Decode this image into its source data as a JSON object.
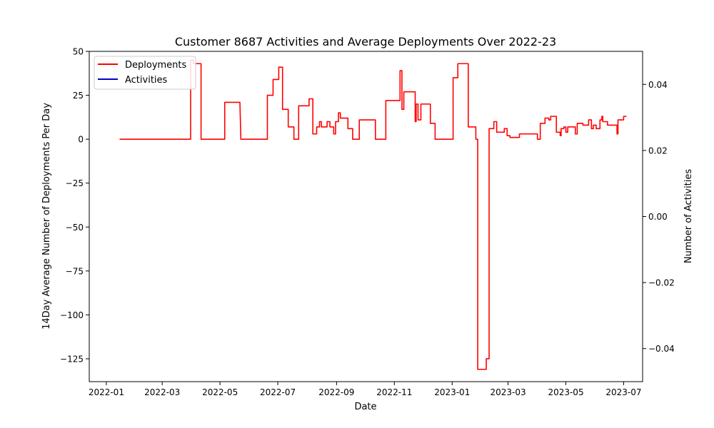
{
  "chart_data": {
    "type": "line",
    "title": "Customer 8687 Activities and Average Deployments Over 2022-23",
    "xlabel": "Date",
    "ylabel_left": "14Day Average Number of Deployments Per Day",
    "ylabel_right": "Number of Activities",
    "x_ticks": [
      "2022-01",
      "2022-03",
      "2022-05",
      "2022-07",
      "2022-09",
      "2022-11",
      "2023-01",
      "2023-03",
      "2023-05",
      "2023-07"
    ],
    "y_ticks_left": [
      "50",
      "25",
      "0",
      "−25",
      "−50",
      "−75",
      "−100",
      "−125"
    ],
    "y_ticks_right": [
      "0.04",
      "0.02",
      "0.00",
      "−0.02",
      "−0.04"
    ],
    "ylim_left": [
      -138,
      50
    ],
    "ylim_right": [
      -0.05,
      0.05
    ],
    "legend": {
      "position": "top-left",
      "entries": [
        "Deployments",
        "Activities"
      ]
    },
    "series": [
      {
        "name": "Deployments",
        "axis": "left",
        "color": "#ff0000",
        "points": [
          [
            "2022-01-15",
            0
          ],
          [
            "2022-03-31",
            0
          ],
          [
            "2022-03-31",
            45
          ],
          [
            "2022-04-03",
            45
          ],
          [
            "2022-04-03",
            43
          ],
          [
            "2022-04-11",
            43
          ],
          [
            "2022-04-11",
            0
          ],
          [
            "2022-05-06",
            0
          ],
          [
            "2022-05-06",
            21
          ],
          [
            "2022-05-22",
            21
          ],
          [
            "2022-05-23",
            0
          ],
          [
            "2022-06-20",
            0
          ],
          [
            "2022-06-20",
            25
          ],
          [
            "2022-06-26",
            25
          ],
          [
            "2022-06-26",
            34
          ],
          [
            "2022-07-02",
            34
          ],
          [
            "2022-07-02",
            41
          ],
          [
            "2022-07-06",
            41
          ],
          [
            "2022-07-06",
            17
          ],
          [
            "2022-07-12",
            17
          ],
          [
            "2022-07-12",
            7
          ],
          [
            "2022-07-18",
            7
          ],
          [
            "2022-07-18",
            0
          ],
          [
            "2022-07-23",
            0
          ],
          [
            "2022-07-23",
            19
          ],
          [
            "2022-08-03",
            19
          ],
          [
            "2022-08-03",
            23
          ],
          [
            "2022-08-07",
            23
          ],
          [
            "2022-08-07",
            3
          ],
          [
            "2022-08-11",
            3
          ],
          [
            "2022-08-11",
            7
          ],
          [
            "2022-08-14",
            7
          ],
          [
            "2022-08-14",
            10
          ],
          [
            "2022-08-16",
            10
          ],
          [
            "2022-08-16",
            7
          ],
          [
            "2022-08-22",
            7
          ],
          [
            "2022-08-22",
            10
          ],
          [
            "2022-08-25",
            10
          ],
          [
            "2022-08-25",
            7
          ],
          [
            "2022-08-29",
            7
          ],
          [
            "2022-08-29",
            3
          ],
          [
            "2022-08-31",
            3
          ],
          [
            "2022-08-31",
            10
          ],
          [
            "2022-09-03",
            10
          ],
          [
            "2022-09-03",
            15
          ],
          [
            "2022-09-05",
            15
          ],
          [
            "2022-09-05",
            12
          ],
          [
            "2022-09-13",
            12
          ],
          [
            "2022-09-13",
            6
          ],
          [
            "2022-09-18",
            6
          ],
          [
            "2022-09-18",
            0
          ],
          [
            "2022-09-25",
            0
          ],
          [
            "2022-09-25",
            11
          ],
          [
            "2022-10-12",
            11
          ],
          [
            "2022-10-12",
            0
          ],
          [
            "2022-10-23",
            0
          ],
          [
            "2022-10-23",
            22
          ],
          [
            "2022-11-07",
            22
          ],
          [
            "2022-11-07",
            39
          ],
          [
            "2022-11-09",
            39
          ],
          [
            "2022-11-09",
            17
          ],
          [
            "2022-11-11",
            17
          ],
          [
            "2022-11-11",
            27
          ],
          [
            "2022-11-23",
            27
          ],
          [
            "2022-11-23",
            10
          ],
          [
            "2022-11-24",
            10
          ],
          [
            "2022-11-24",
            20
          ],
          [
            "2022-11-26",
            20
          ],
          [
            "2022-11-26",
            11
          ],
          [
            "2022-11-29",
            11
          ],
          [
            "2022-11-29",
            20
          ],
          [
            "2022-12-09",
            20
          ],
          [
            "2022-12-09",
            9
          ],
          [
            "2022-12-14",
            9
          ],
          [
            "2022-12-14",
            0
          ],
          [
            "2023-01-02",
            0
          ],
          [
            "2023-01-02",
            35
          ],
          [
            "2023-01-07",
            35
          ],
          [
            "2023-01-07",
            43
          ],
          [
            "2023-01-18",
            43
          ],
          [
            "2023-01-18",
            7
          ],
          [
            "2023-01-26",
            7
          ],
          [
            "2023-01-26",
            0
          ],
          [
            "2023-01-28",
            0
          ],
          [
            "2023-01-28",
            -131
          ],
          [
            "2023-02-06",
            -131
          ],
          [
            "2023-02-06",
            -125
          ],
          [
            "2023-02-09",
            -125
          ],
          [
            "2023-02-09",
            6
          ],
          [
            "2023-02-14",
            6
          ],
          [
            "2023-02-14",
            10
          ],
          [
            "2023-02-17",
            10
          ],
          [
            "2023-02-17",
            4
          ],
          [
            "2023-02-25",
            4
          ],
          [
            "2023-02-25",
            6
          ],
          [
            "2023-02-28",
            6
          ],
          [
            "2023-02-28",
            2
          ],
          [
            "2023-03-03",
            2
          ],
          [
            "2023-03-03",
            1
          ],
          [
            "2023-03-13",
            1
          ],
          [
            "2023-03-13",
            3
          ],
          [
            "2023-04-01",
            3
          ],
          [
            "2023-04-01",
            0
          ],
          [
            "2023-04-04",
            0
          ],
          [
            "2023-04-04",
            9
          ],
          [
            "2023-04-09",
            9
          ],
          [
            "2023-04-09",
            12
          ],
          [
            "2023-04-13",
            12
          ],
          [
            "2023-04-13",
            11
          ],
          [
            "2023-04-15",
            11
          ],
          [
            "2023-04-15",
            13
          ],
          [
            "2023-04-21",
            13
          ],
          [
            "2023-04-21",
            4
          ],
          [
            "2023-04-25",
            4
          ],
          [
            "2023-04-25",
            2
          ],
          [
            "2023-04-26",
            2
          ],
          [
            "2023-04-26",
            6
          ],
          [
            "2023-04-29",
            6
          ],
          [
            "2023-04-29",
            7
          ],
          [
            "2023-05-01",
            7
          ],
          [
            "2023-05-01",
            4
          ],
          [
            "2023-05-03",
            4
          ],
          [
            "2023-05-03",
            7
          ],
          [
            "2023-05-11",
            7
          ],
          [
            "2023-05-11",
            3
          ],
          [
            "2023-05-13",
            3
          ],
          [
            "2023-05-13",
            9
          ],
          [
            "2023-05-19",
            9
          ],
          [
            "2023-05-19",
            8
          ],
          [
            "2023-05-25",
            8
          ],
          [
            "2023-05-25",
            11
          ],
          [
            "2023-05-28",
            11
          ],
          [
            "2023-05-28",
            6
          ],
          [
            "2023-05-30",
            6
          ],
          [
            "2023-05-30",
            8
          ],
          [
            "2023-06-02",
            8
          ],
          [
            "2023-06-02",
            6
          ],
          [
            "2023-06-06",
            6
          ],
          [
            "2023-06-06",
            11
          ],
          [
            "2023-06-08",
            11
          ],
          [
            "2023-06-08",
            13
          ],
          [
            "2023-06-09",
            13
          ],
          [
            "2023-06-09",
            10
          ],
          [
            "2023-06-14",
            10
          ],
          [
            "2023-06-14",
            8
          ],
          [
            "2023-06-24",
            8
          ],
          [
            "2023-06-24",
            3
          ],
          [
            "2023-06-25",
            3
          ],
          [
            "2023-06-25",
            11
          ],
          [
            "2023-07-01",
            11
          ],
          [
            "2023-07-01",
            13
          ],
          [
            "2023-07-04",
            13
          ]
        ]
      },
      {
        "name": "Activities",
        "axis": "right",
        "color": "#0000cc",
        "points": []
      }
    ]
  }
}
